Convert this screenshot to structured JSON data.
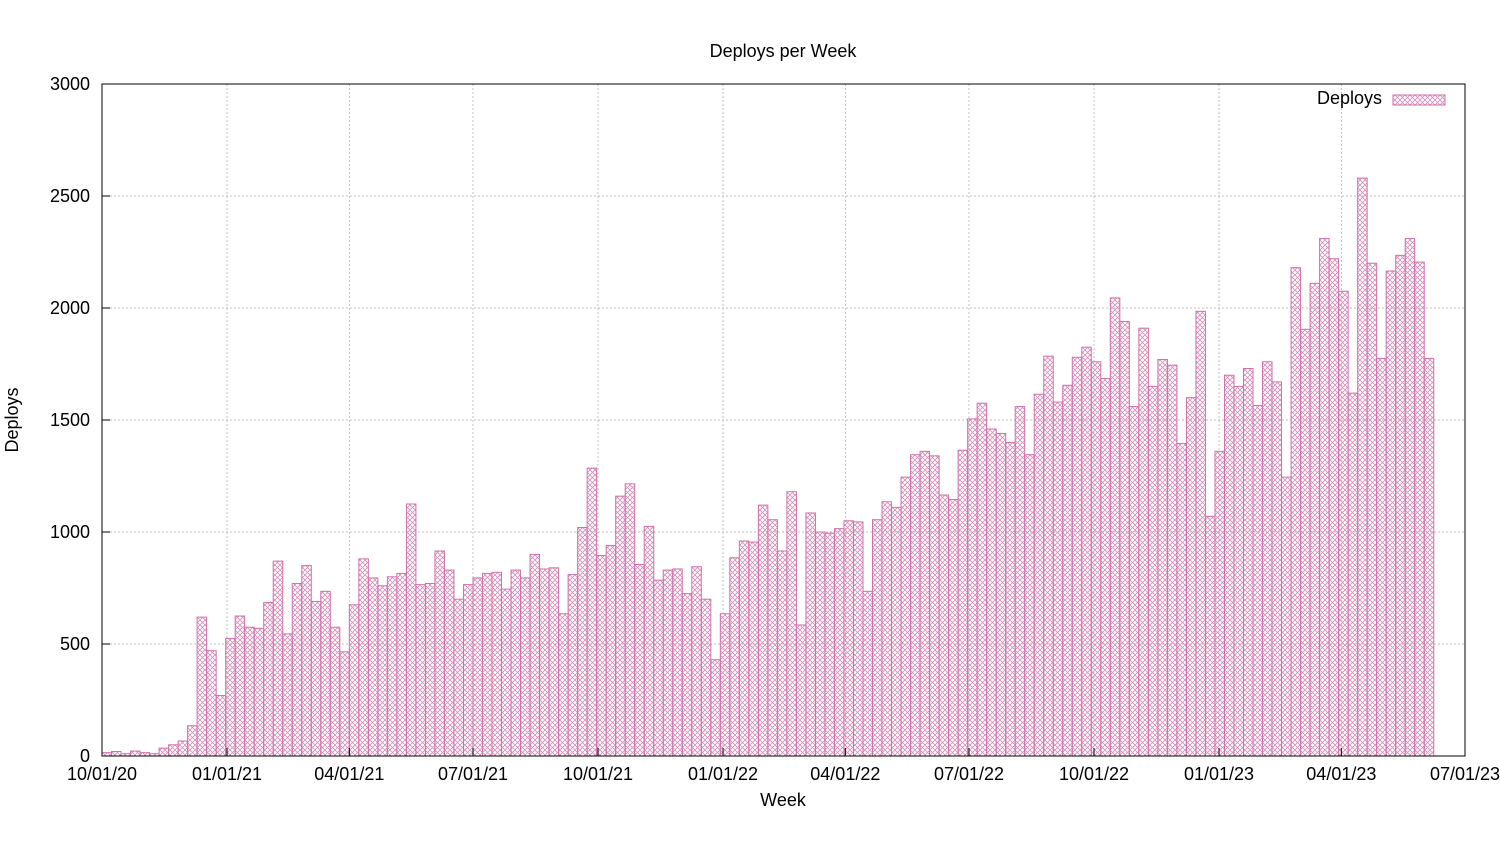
{
  "chart_data": {
    "type": "bar",
    "title": "Deploys per Week",
    "xlabel": "Week",
    "ylabel": "Deploys",
    "ylim": [
      0,
      3000
    ],
    "yticks": [
      0,
      500,
      1000,
      1500,
      2000,
      2500,
      3000
    ],
    "xlim": [
      "2020-10-01",
      "2023-07-01"
    ],
    "xticks": [
      {
        "date": "2020-10-01",
        "label": "10/01/20"
      },
      {
        "date": "2021-01-01",
        "label": "01/01/21"
      },
      {
        "date": "2021-04-01",
        "label": "04/01/21"
      },
      {
        "date": "2021-07-01",
        "label": "07/01/21"
      },
      {
        "date": "2021-10-01",
        "label": "10/01/21"
      },
      {
        "date": "2022-01-01",
        "label": "01/01/22"
      },
      {
        "date": "2022-04-01",
        "label": "04/01/22"
      },
      {
        "date": "2022-07-01",
        "label": "07/01/22"
      },
      {
        "date": "2022-10-01",
        "label": "10/01/22"
      },
      {
        "date": "2023-01-01",
        "label": "01/01/23"
      },
      {
        "date": "2023-04-01",
        "label": "04/01/23"
      },
      {
        "date": "2023-07-01",
        "label": "07/01/23"
      }
    ],
    "grid": true,
    "legend": {
      "position": "top-right",
      "entries": [
        "Deploys"
      ]
    },
    "series": [
      {
        "name": "Deploys",
        "color": "#d070a8",
        "start_date": "2020-10-01",
        "interval_days": 7,
        "values": [
          15,
          20,
          10,
          22,
          15,
          10,
          35,
          50,
          67,
          135,
          620,
          470,
          270,
          525,
          625,
          575,
          570,
          685,
          870,
          545,
          770,
          850,
          690,
          735,
          575,
          465,
          675,
          880,
          795,
          760,
          800,
          815,
          1125,
          765,
          770,
          915,
          830,
          700,
          765,
          795,
          815,
          820,
          745,
          830,
          795,
          900,
          835,
          840,
          635,
          810,
          1020,
          1285,
          895,
          940,
          1160,
          1215,
          855,
          1025,
          785,
          830,
          835,
          725,
          845,
          700,
          430,
          635,
          885,
          960,
          955,
          1120,
          1055,
          915,
          1180,
          585,
          1085,
          1000,
          995,
          1015,
          1050,
          1045,
          735,
          1055,
          1135,
          1110,
          1245,
          1345,
          1360,
          1340,
          1165,
          1145,
          1365,
          1505,
          1575,
          1460,
          1440,
          1400,
          1560,
          1345,
          1615,
          1785,
          1580,
          1655,
          1780,
          1825,
          1760,
          1685,
          2045,
          1940,
          1560,
          1910,
          1650,
          1770,
          1745,
          1395,
          1600,
          1985,
          1070,
          1360,
          1700,
          1650,
          1730,
          1565,
          1760,
          1670,
          1245,
          2180,
          1905,
          2110,
          2310,
          2220,
          2075,
          1620,
          2580,
          2200,
          1775,
          2165,
          2235,
          2310,
          2205,
          1775
        ]
      }
    ]
  }
}
